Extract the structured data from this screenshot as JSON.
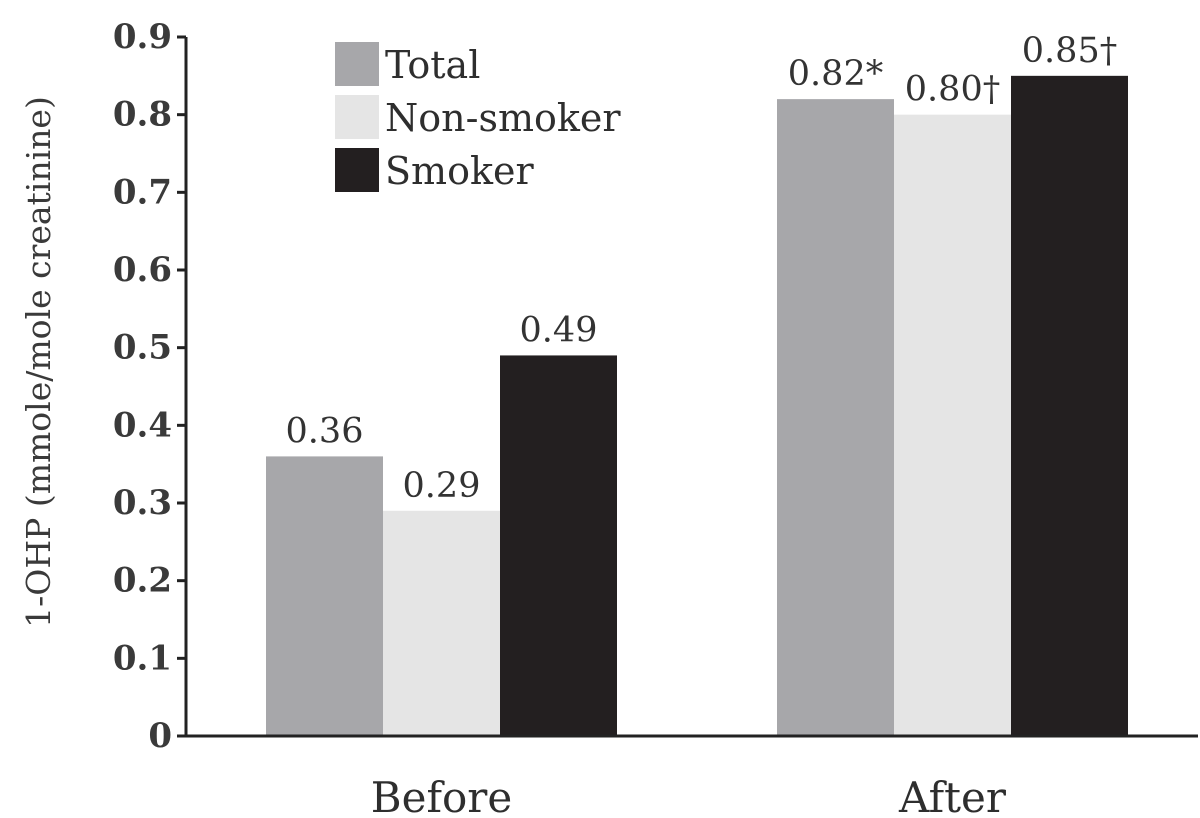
{
  "chart_data": {
    "type": "bar",
    "categories": [
      "Before",
      "After"
    ],
    "series": [
      {
        "name": "Total",
        "color": "#a7a7aa",
        "values": [
          0.36,
          0.82
        ],
        "labels": [
          "0.36",
          "0.82*"
        ]
      },
      {
        "name": "Non-smoker",
        "color": "#e5e5e5",
        "values": [
          0.29,
          0.8
        ],
        "labels": [
          "0.29",
          "0.80†"
        ]
      },
      {
        "name": "Smoker",
        "color": "#231f20",
        "values": [
          0.49,
          0.85
        ],
        "labels": [
          "0.49",
          "0.85†"
        ]
      }
    ],
    "ylabel": "1-OHP (mmole/mole creatinine)",
    "ylim": [
      0,
      0.9
    ],
    "yticks": [
      "0",
      "0.1",
      "0.2",
      "0.3",
      "0.4",
      "0.5",
      "0.6",
      "0.7",
      "0.8",
      "0.9"
    ],
    "grid": false,
    "legend_position": "top-left"
  }
}
